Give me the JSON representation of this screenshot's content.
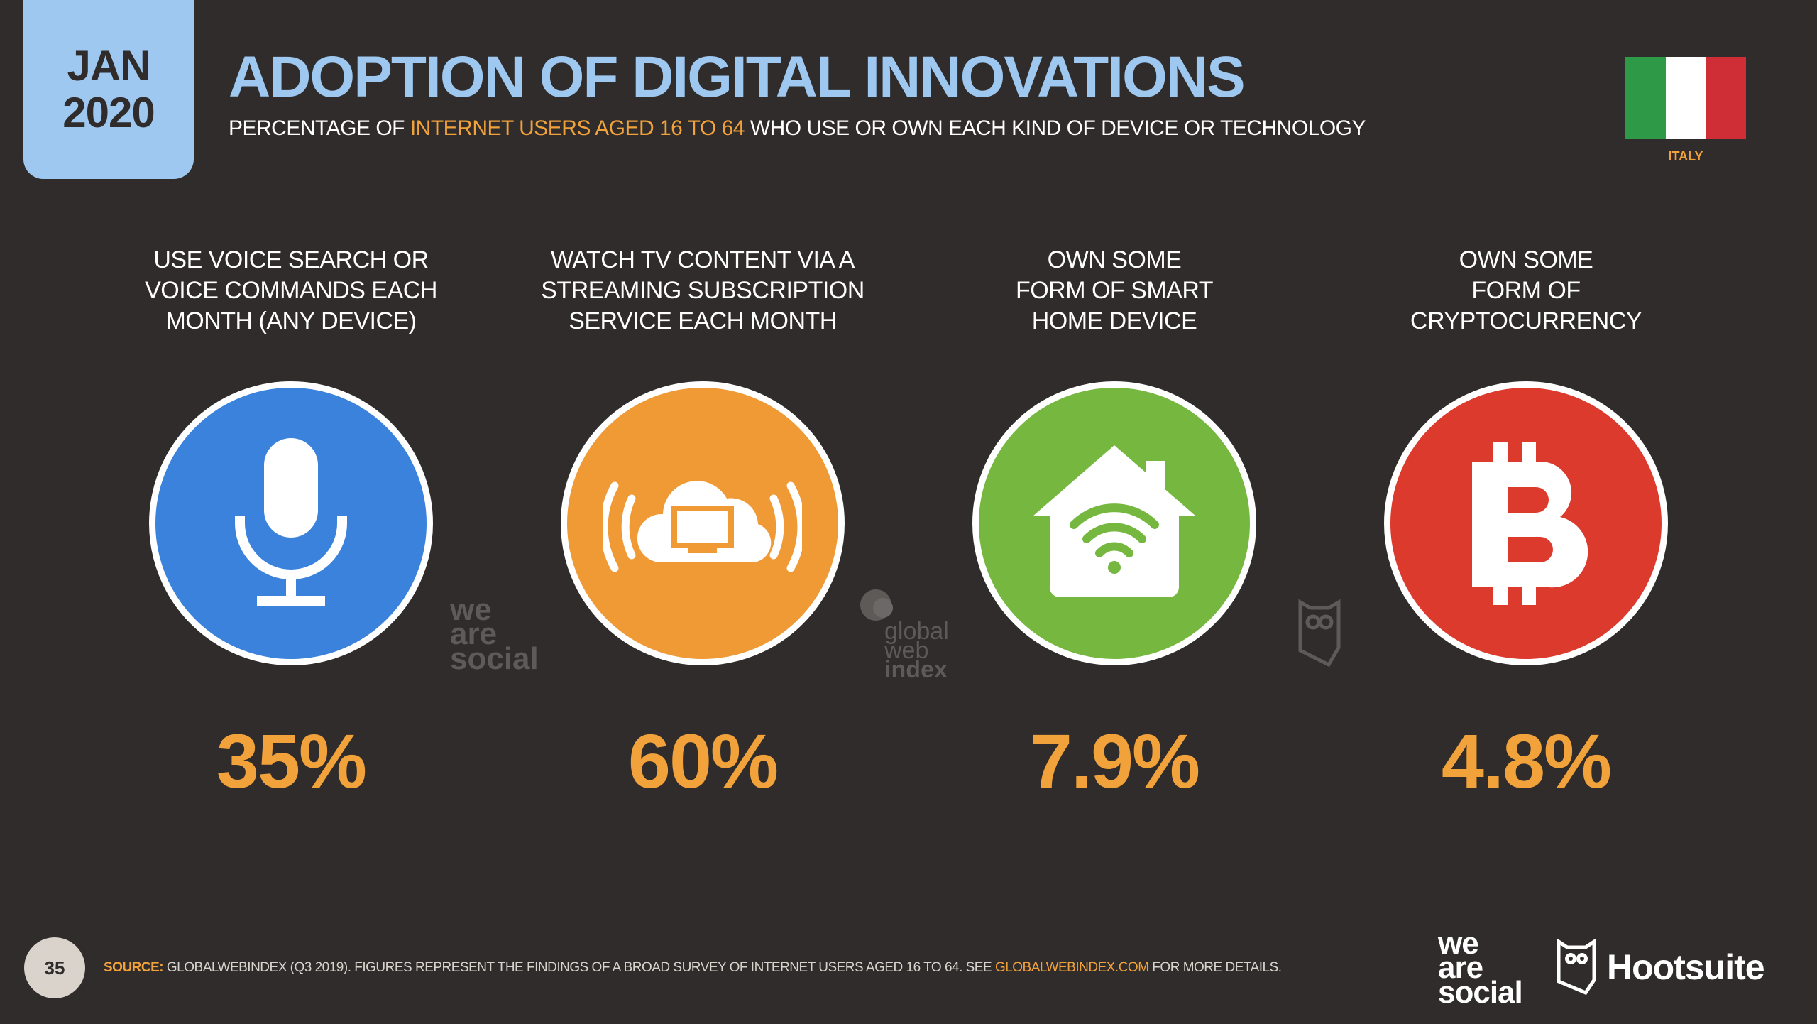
{
  "header": {
    "date_month": "JAN",
    "date_year": "2020",
    "title": "ADOPTION OF DIGITAL INNOVATIONS",
    "subtitle_pre": "PERCENTAGE OF ",
    "subtitle_highlight": "INTERNET USERS AGED 16 TO 64",
    "subtitle_post": " WHO USE OR OWN EACH KIND OF DEVICE OR TECHNOLOGY",
    "country": "ITALY"
  },
  "colors": {
    "background": "#2f2c2b",
    "accent_blue": "#9ec8f0",
    "accent_orange": "#f2a23a",
    "flag_green": "#2e9a48",
    "flag_white": "#ffffff",
    "flag_red": "#cf2e37"
  },
  "stats": [
    {
      "label_lines": [
        "USE VOICE SEARCH OR",
        "VOICE COMMANDS EACH",
        "MONTH (ANY DEVICE)"
      ],
      "value": "35%",
      "icon": "microphone-icon",
      "color": "#3a82dc"
    },
    {
      "label_lines": [
        "WATCH TV CONTENT VIA A",
        "STREAMING SUBSCRIPTION",
        "SERVICE EACH MONTH"
      ],
      "value": "60%",
      "icon": "cloud-tv-icon",
      "color": "#f09a36"
    },
    {
      "label_lines": [
        "OWN SOME",
        "FORM OF SMART",
        "HOME DEVICE"
      ],
      "value": "7.9%",
      "icon": "smart-home-icon",
      "color": "#76b83f"
    },
    {
      "label_lines": [
        "OWN SOME",
        "FORM OF",
        "CRYPTOCURRENCY"
      ],
      "value": "4.8%",
      "icon": "bitcoin-icon",
      "color": "#dd3a2e"
    }
  ],
  "watermarks": {
    "was_1": "we",
    "was_2": "are",
    "was_3": "social",
    "gwi_1": "global",
    "gwi_2": "web",
    "gwi_3": "index"
  },
  "footer": {
    "page_number": "35",
    "source_label": "SOURCE:",
    "source_text": " GLOBALWEBINDEX (Q3 2019). FIGURES REPRESENT THE FINDINGS OF A BROAD SURVEY OF INTERNET USERS AGED 16 TO 64. SEE ",
    "source_link": "GLOBALWEBINDEX.COM",
    "source_end": " FOR MORE DETAILS.",
    "logo_was_1": "we",
    "logo_was_2": "are",
    "logo_was_3": "social",
    "logo_hootsuite": "Hootsuite"
  }
}
